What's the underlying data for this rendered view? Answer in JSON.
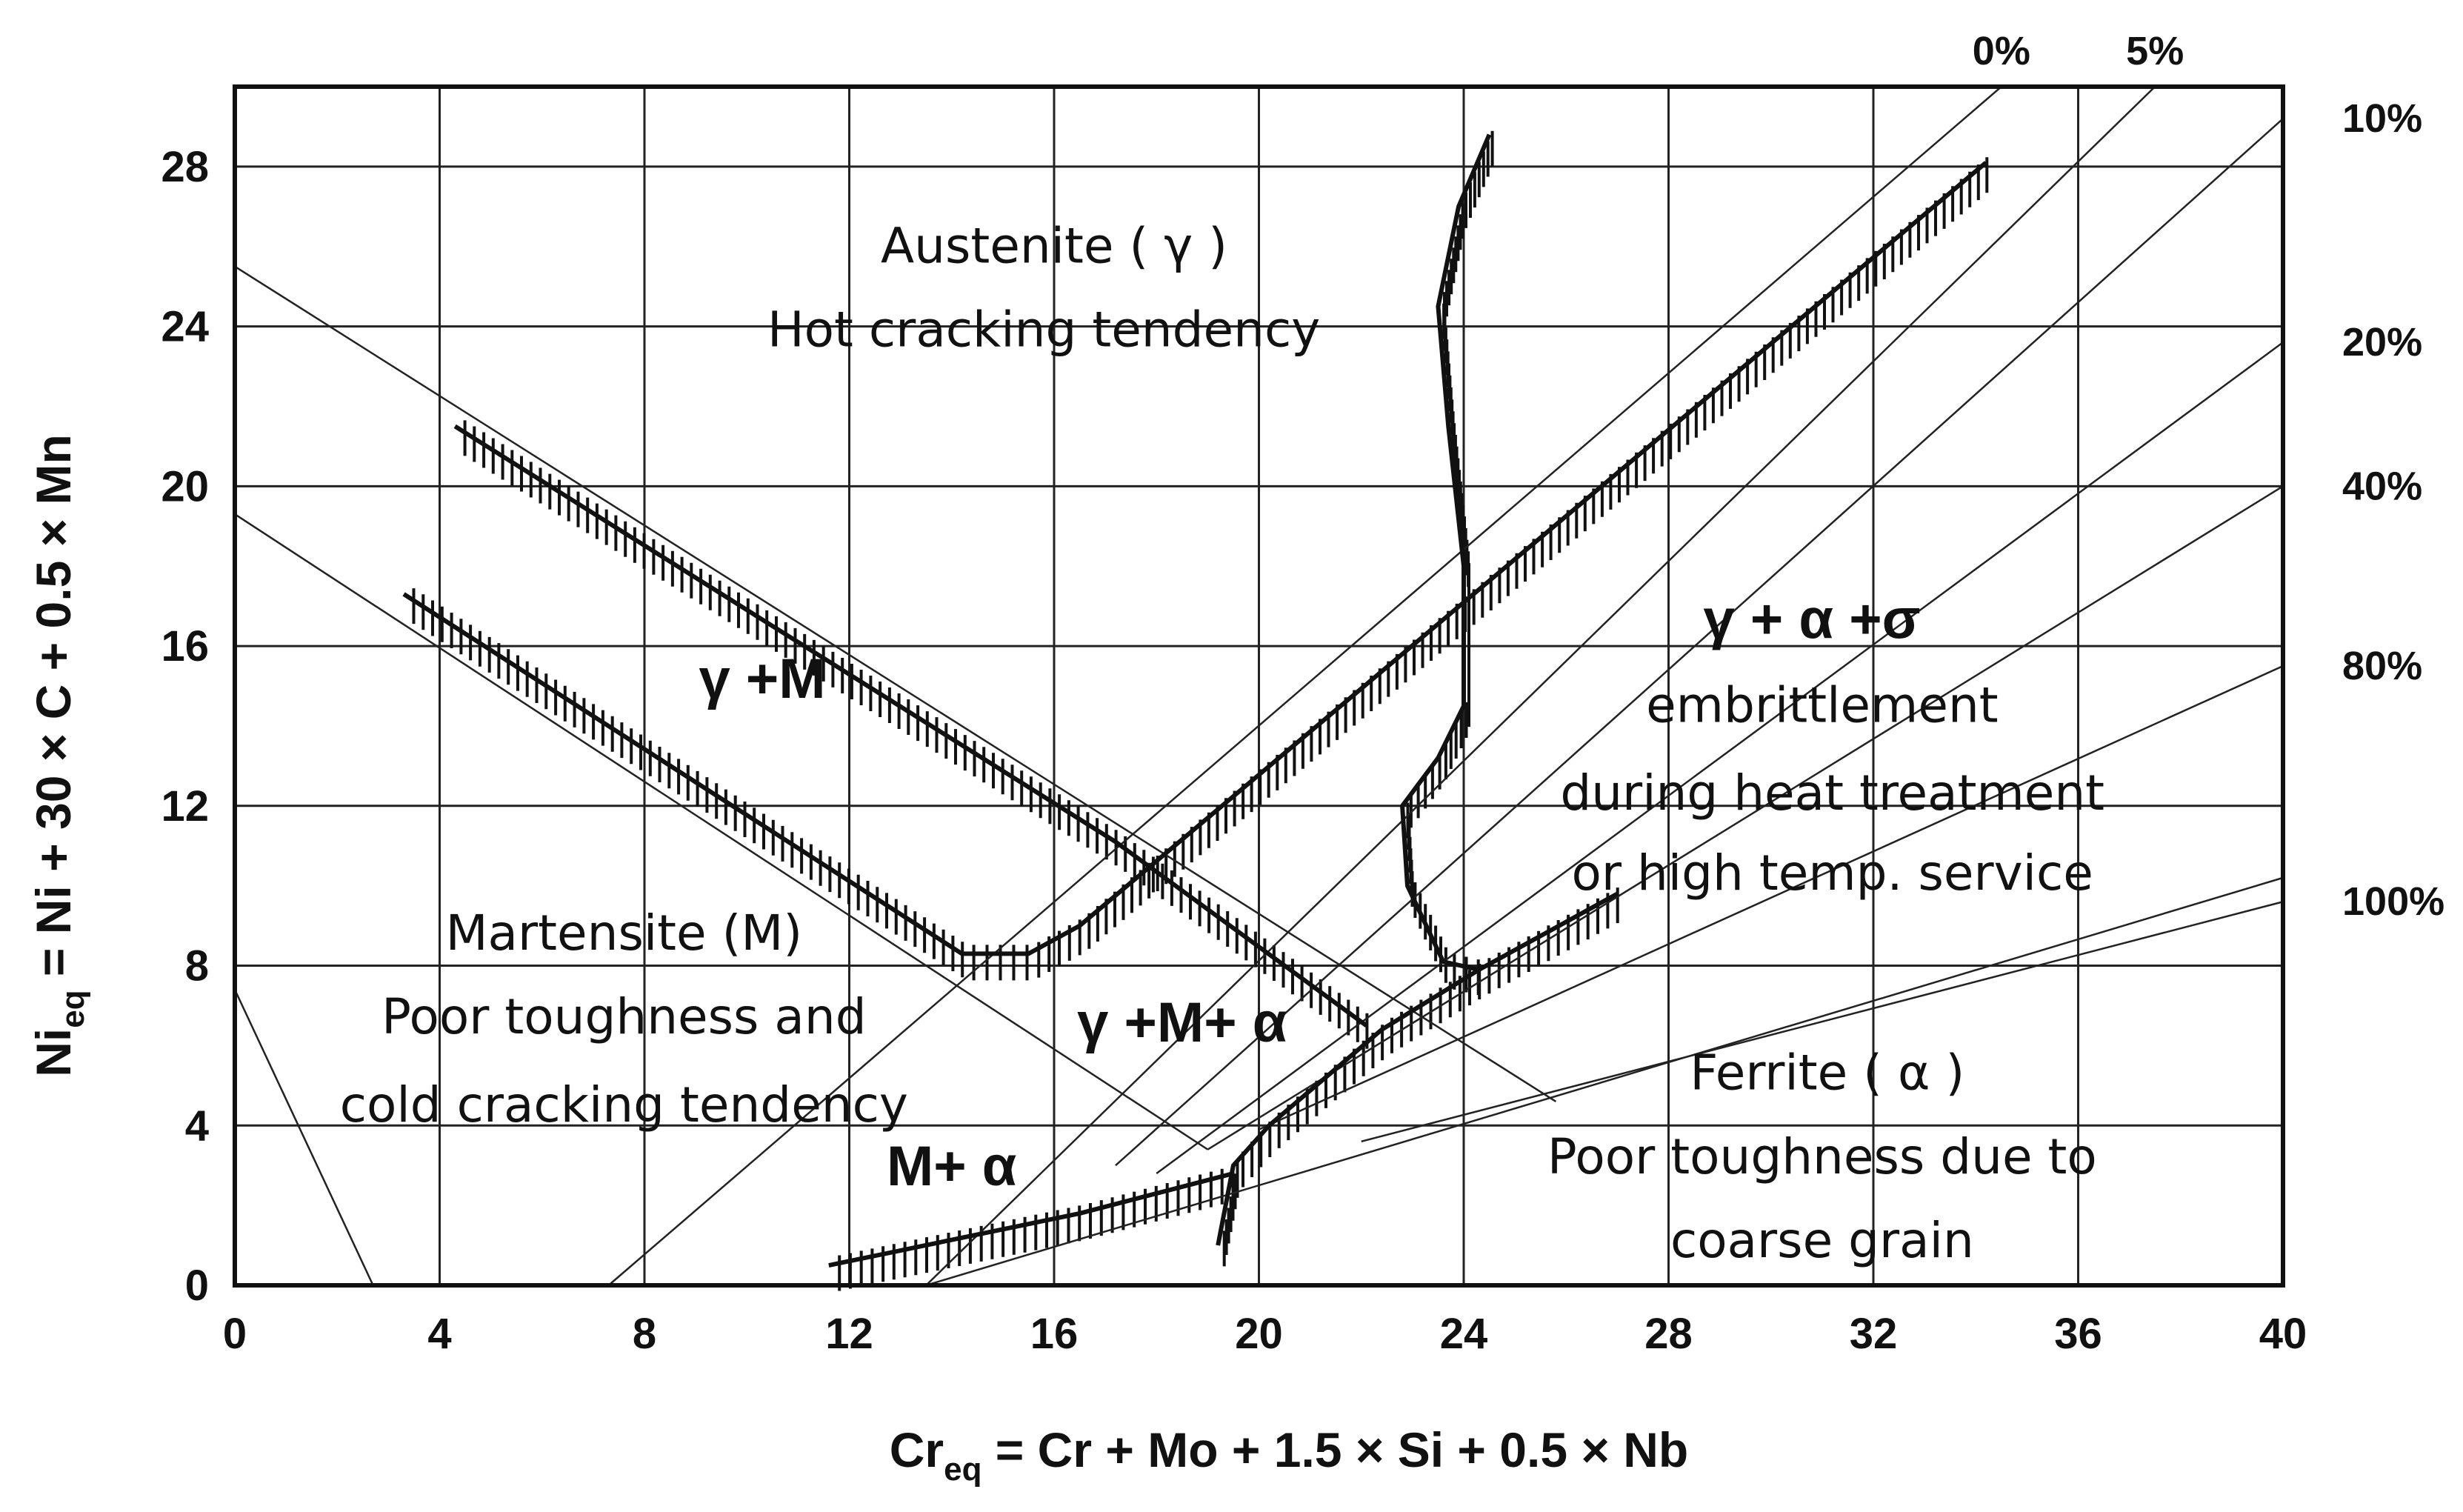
{
  "chart_data": {
    "type": "line",
    "title": "",
    "xlabel": {
      "main": "Cr",
      "sub": "eq",
      "rest": " = Cr + Mo + 1.5 × Si + 0.5 × Nb"
    },
    "ylabel": {
      "main": "Ni",
      "sub": "eq",
      "rest": " = Ni + 30 × C + 0.5 × Mn"
    },
    "xlim": [
      0,
      40
    ],
    "ylim": [
      0,
      30
    ],
    "x_ticks": [
      "0",
      "4",
      "8",
      "12",
      "16",
      "20",
      "24",
      "28",
      "32",
      "36",
      "40"
    ],
    "y_ticks": [
      "0",
      "4",
      "8",
      "12",
      "16",
      "20",
      "24",
      "28"
    ],
    "grid": true,
    "ferrite_iso_lines": [
      {
        "label": "0%",
        "from": [
          7.3,
          0
        ],
        "to": [
          34.5,
          30
        ]
      },
      {
        "label": "5%",
        "from": [
          13.5,
          0
        ],
        "to": [
          37.5,
          30
        ]
      },
      {
        "label": "10%",
        "from": [
          17.2,
          3.0
        ],
        "to": [
          40,
          29.2
        ]
      },
      {
        "label": "20%",
        "from": [
          18.0,
          2.8
        ],
        "to": [
          40,
          23.6
        ]
      },
      {
        "label": "40%",
        "from": [
          19.0,
          3.4
        ],
        "to": [
          40,
          20.0
        ]
      },
      {
        "label": "80%",
        "from": [
          20.0,
          3.9
        ],
        "to": [
          40,
          15.5
        ]
      },
      {
        "label": "100%",
        "from": [
          22.0,
          3.6
        ],
        "to": [
          40,
          9.6
        ]
      }
    ],
    "reference_lines": [
      {
        "from": [
          0,
          25.5
        ],
        "to": [
          25.8,
          4.6
        ]
      },
      {
        "from": [
          0,
          19.3
        ],
        "to": [
          19.0,
          3.4
        ]
      },
      {
        "from": [
          0,
          7.4
        ],
        "to": [
          2.7,
          0
        ]
      },
      {
        "from": [
          13.5,
          0
        ],
        "to": [
          40,
          10.2
        ]
      }
    ],
    "boundaries": [
      {
        "name": "austenite-martensite-upper",
        "points": [
          [
            4.3,
            21.5
          ],
          [
            17.2,
            11.1
          ],
          [
            22.1,
            6.5
          ]
        ]
      },
      {
        "name": "austenite-martensite-lower",
        "points": [
          [
            3.3,
            17.3
          ],
          [
            14.2,
            8.3
          ],
          [
            15.5,
            8.3
          ],
          [
            16.5,
            9.0
          ],
          [
            34.2,
            28.1
          ]
        ]
      },
      {
        "name": "austenite-ferrite-sigma",
        "points": [
          [
            24.5,
            28.8
          ],
          [
            23.9,
            27.0
          ],
          [
            23.5,
            24.5
          ],
          [
            23.7,
            21.5
          ],
          [
            24.0,
            18.0
          ],
          [
            24.0,
            14.5
          ],
          [
            23.5,
            13.2
          ],
          [
            22.8,
            12.0
          ],
          [
            22.9,
            10.0
          ],
          [
            23.6,
            8.1
          ],
          [
            24.3,
            7.9
          ]
        ]
      },
      {
        "name": "martensite-ferrite",
        "points": [
          [
            11.6,
            0.5
          ],
          [
            16.5,
            1.8
          ],
          [
            19.5,
            2.8
          ]
        ]
      },
      {
        "name": "ferrite-boundary",
        "points": [
          [
            19.2,
            1.0
          ],
          [
            19.5,
            3.0
          ],
          [
            20.2,
            4.0
          ],
          [
            21.3,
            5.2
          ],
          [
            22.4,
            6.4
          ],
          [
            24.3,
            7.9
          ],
          [
            27.0,
            9.8
          ]
        ]
      }
    ],
    "annotations": [
      {
        "text": "Austenite ( γ )",
        "x": 16.0,
        "y": 25.6
      },
      {
        "text": "Hot cracking tendency",
        "x": 15.8,
        "y": 23.5
      },
      {
        "text": "γ +M",
        "x": 10.3,
        "y": 14.7
      },
      {
        "text": "Martensite (M)",
        "x": 7.6,
        "y": 8.4
      },
      {
        "text": "Poor toughness and",
        "x": 7.6,
        "y": 6.3
      },
      {
        "text": "cold cracking tendency",
        "x": 7.6,
        "y": 4.1
      },
      {
        "text": "γ +M+ α",
        "x": 18.5,
        "y": 6.1
      },
      {
        "text": "M+ α",
        "x": 14.0,
        "y": 2.5
      },
      {
        "text": "γ + α +σ",
        "x": 30.8,
        "y": 16.2
      },
      {
        "text": "embrittlement",
        "x": 31.0,
        "y": 14.1
      },
      {
        "text": "during heat treatment",
        "x": 31.2,
        "y": 11.9
      },
      {
        "text": "or high temp. service",
        "x": 31.2,
        "y": 9.9
      },
      {
        "text": "Ferrite ( α )",
        "x": 31.1,
        "y": 4.9
      },
      {
        "text": "Poor toughness due to",
        "x": 31.0,
        "y": 2.8
      },
      {
        "text": "coarse grain",
        "x": 31.0,
        "y": 0.7
      }
    ]
  }
}
